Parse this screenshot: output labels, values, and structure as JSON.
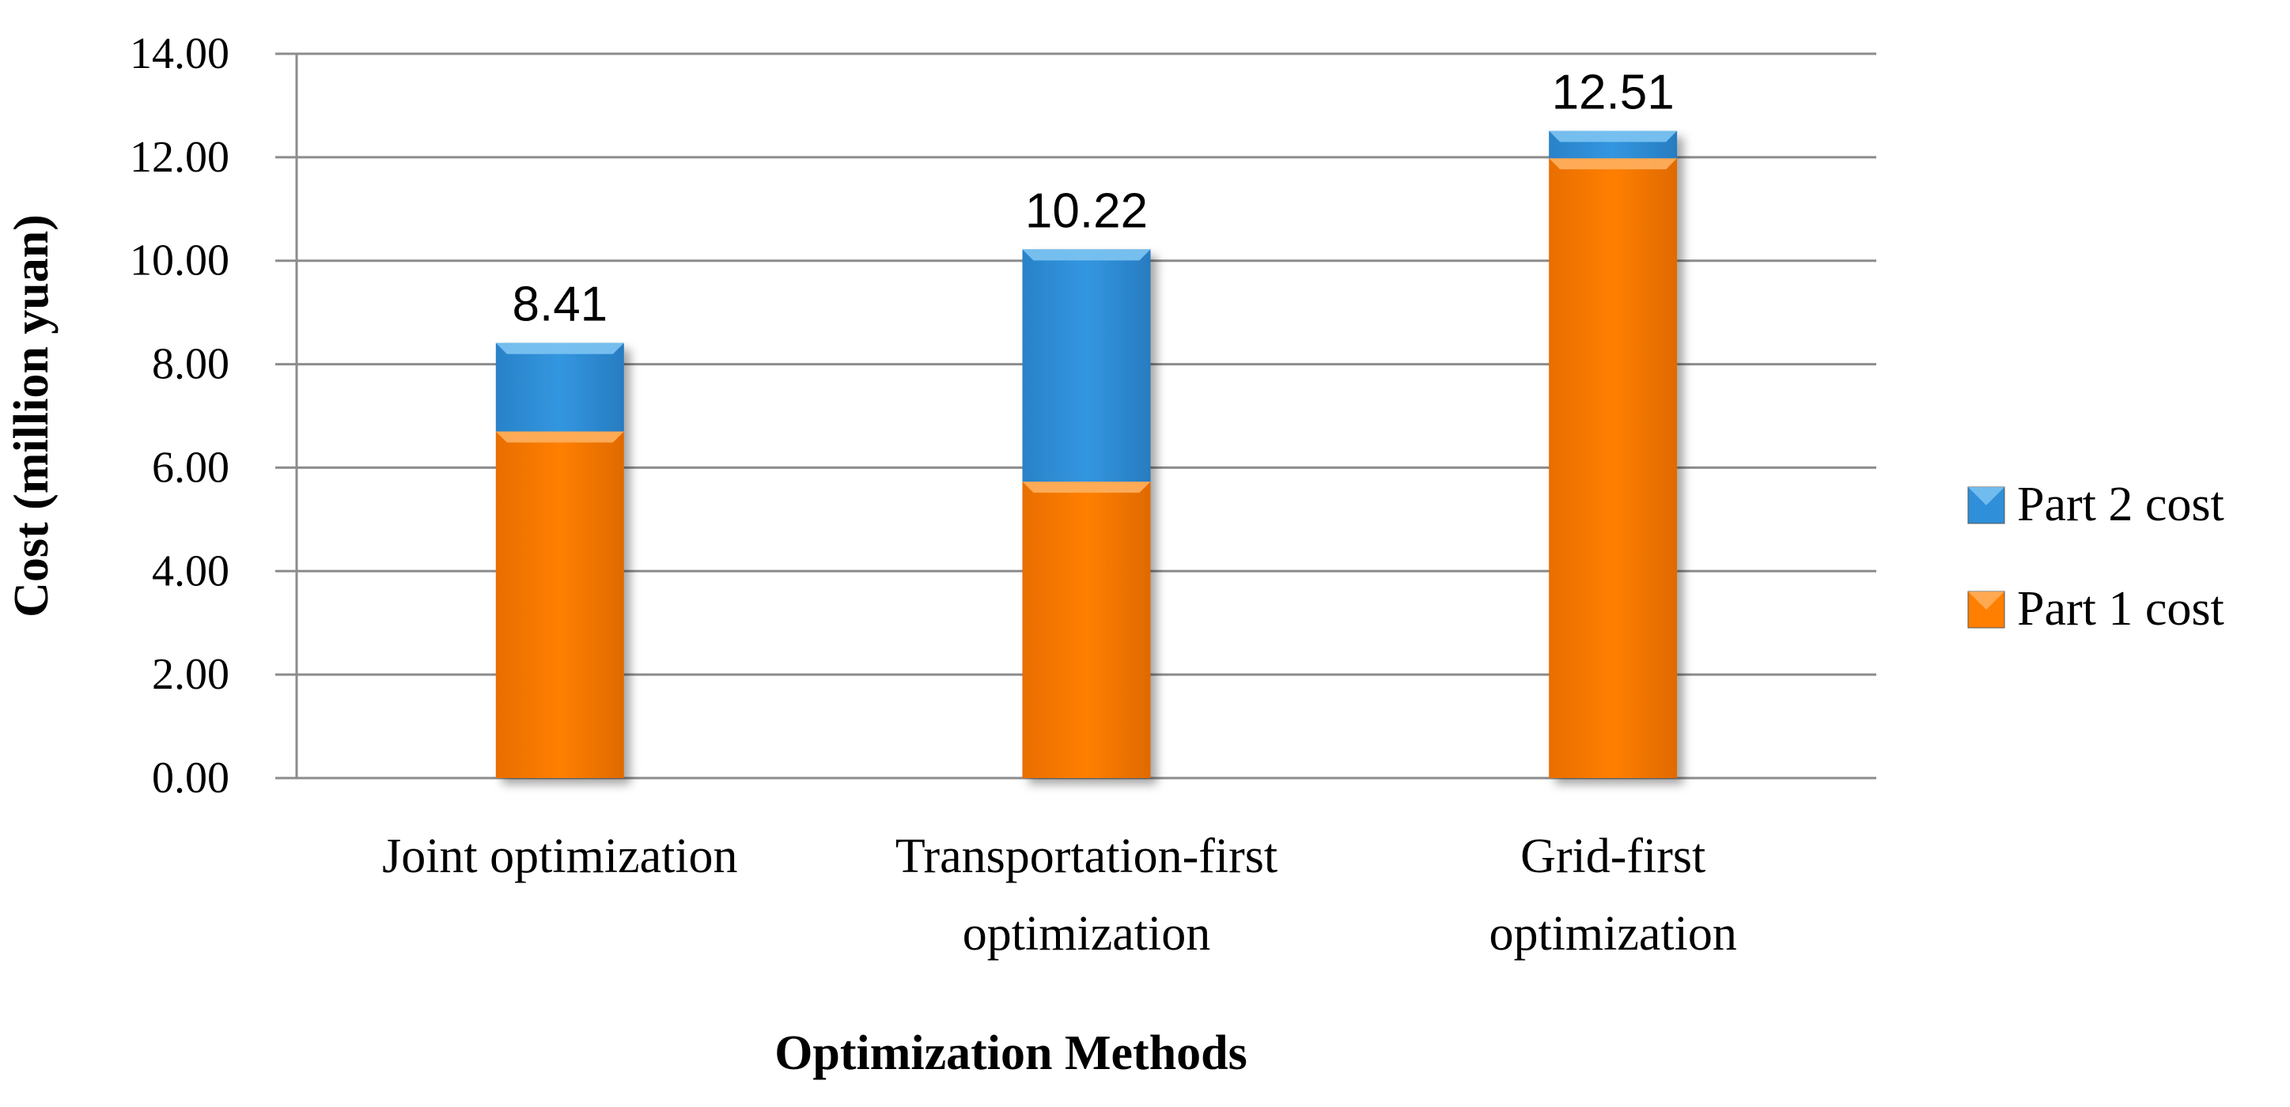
{
  "chart_data": {
    "type": "bar",
    "stacked": true,
    "categories": [
      [
        "Joint optimization"
      ],
      [
        "Transportation-first",
        "optimization"
      ],
      [
        "Grid-first",
        "optimization"
      ]
    ],
    "series": [
      {
        "name": "Part 1 cost",
        "color": "#FF7F00",
        "values": [
          6.7,
          5.73,
          11.98
        ]
      },
      {
        "name": "Part 2 cost",
        "color": "#2F8FD8",
        "values": [
          1.71,
          4.49,
          0.53
        ]
      }
    ],
    "totals": [
      "8.41",
      "10.22",
      "12.51"
    ],
    "xlabel": "Optimization Methods",
    "ylabel": "Cost (million yuan)",
    "ylim": [
      0,
      14
    ],
    "yticks": [
      "0.00",
      "2.00",
      "4.00",
      "6.00",
      "8.00",
      "10.00",
      "12.00",
      "14.00"
    ],
    "legend_order": [
      "Part 2 cost",
      "Part 1 cost"
    ],
    "legend_position": "right",
    "grid": true
  }
}
